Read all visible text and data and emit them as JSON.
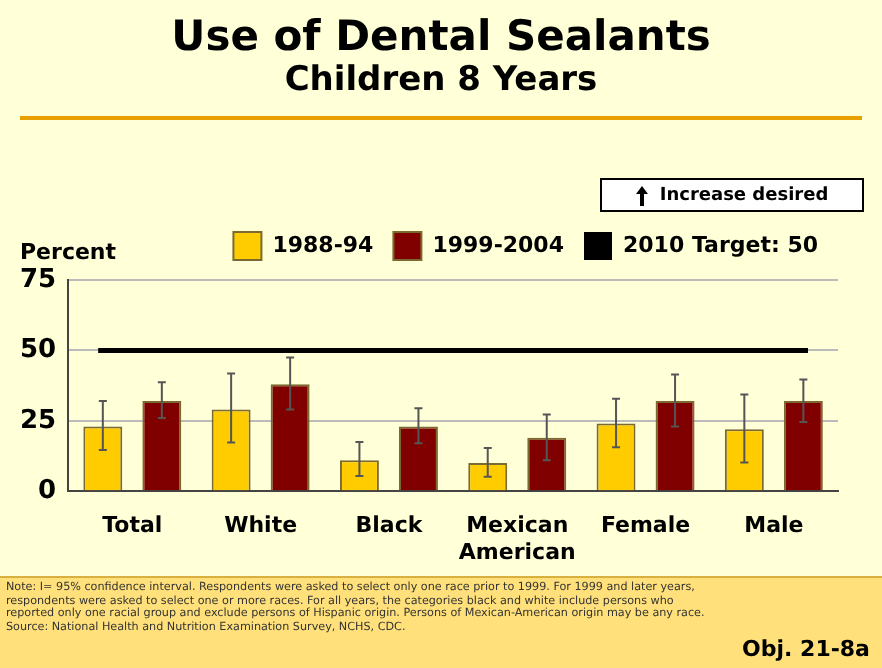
{
  "chart_data": {
    "type": "bar",
    "title": "Use of Dental Sealants",
    "subtitle": "Children 8 Years",
    "ylabel": "Percent",
    "categories": [
      "Total",
      "White",
      "Black",
      "Mexican American",
      "Female",
      "Male"
    ],
    "series": [
      {
        "name": "1988-94",
        "color": "#ffcc00",
        "values": [
          23,
          29,
          11,
          10,
          24,
          22
        ],
        "errors": [
          [
            14.6,
            32
          ],
          [
            17.3,
            41.8
          ],
          [
            5.4,
            17.5
          ],
          [
            5.1,
            15.3
          ],
          [
            15.6,
            32.8
          ],
          [
            10.2,
            34.3
          ]
        ]
      },
      {
        "name": "1999-2004",
        "color": "#800000",
        "values": [
          32,
          38,
          23,
          19,
          32,
          32
        ],
        "errors": [
          [
            26,
            38.7
          ],
          [
            29,
            47.5
          ],
          [
            17,
            29.5
          ],
          [
            11,
            27.2
          ],
          [
            23,
            41.4
          ],
          [
            24.6,
            39.7
          ]
        ]
      }
    ],
    "ylim": [
      0,
      75
    ],
    "yticks": [
      0,
      25,
      50,
      75
    ],
    "grid": "y",
    "legend": "top",
    "ref_lines": [
      {
        "axis": "y",
        "value": 50,
        "label": "2010 Target: 50",
        "color": "#000000"
      }
    ],
    "annotations": [
      "Increase desired",
      "Note: I= 95% confidence interval. Respondents were asked to select only one race prior to 1999. For 1999 and later years, respondents were asked to select one or more races. For all years, the categories black and white include persons who reported only one racial group and exclude persons of Hispanic origin. Persons of Mexican-American origin may be any race.",
      "Source: National Health and Nutrition Examination Survey, NCHS, CDC.",
      "Obj. 21-8a"
    ]
  }
}
